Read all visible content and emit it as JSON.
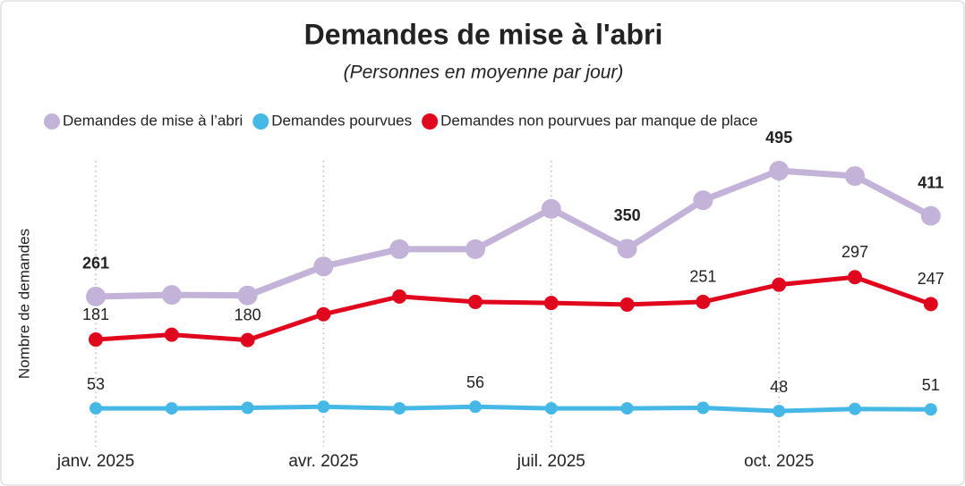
{
  "chart_data": {
    "type": "line",
    "title": "Demandes de mise à l'abri",
    "subtitle": "(Personnes en moyenne par jour)",
    "y_label": "Nombre de demandes",
    "categories": [
      "janv. 2025",
      null,
      null,
      "avr. 2025",
      null,
      null,
      "juil. 2025",
      null,
      null,
      "oct. 2025",
      null,
      null
    ],
    "ylim": [
      0,
      520
    ],
    "grid": true,
    "legend": "top",
    "series": [
      {
        "name": "Demandes de mise à l’abri",
        "color": "#c3b3d9",
        "values": [
          261,
          264,
          263,
          317,
          349,
          349,
          424,
          350,
          440,
          495,
          485,
          411
        ],
        "value_labels": [
          "261",
          null,
          null,
          null,
          null,
          null,
          null,
          "350",
          null,
          "495",
          null,
          "411"
        ]
      },
      {
        "name": "Demandes pourvues",
        "color": "#45b8e6",
        "values": [
          53,
          53,
          54,
          56,
          53,
          56,
          53,
          53,
          54,
          48,
          52,
          51
        ],
        "value_labels": [
          "53",
          null,
          null,
          null,
          null,
          "56",
          null,
          null,
          null,
          "48",
          null,
          "51"
        ]
      },
      {
        "name": "Demandes non pourvues par manque de place",
        "color": "#e0061e",
        "values": [
          181,
          190,
          180,
          228,
          261,
          251,
          249,
          246,
          251,
          283,
          297,
          247
        ],
        "value_labels": [
          "181",
          null,
          "180",
          null,
          null,
          null,
          null,
          null,
          "251",
          null,
          "297",
          "247"
        ]
      }
    ]
  }
}
